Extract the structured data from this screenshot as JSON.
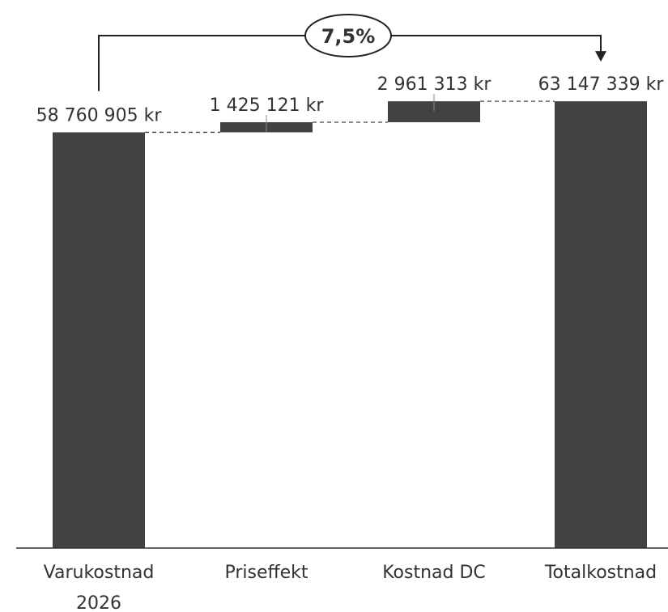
{
  "chart_data": {
    "type": "waterfall",
    "categories": [
      "Varukostnad\n2026",
      "Priseffekt",
      "Kostnad DC",
      "Totalkostnad"
    ],
    "values": [
      58760905,
      1425121,
      2961313,
      63147339
    ],
    "kinds": [
      "total",
      "delta",
      "delta",
      "total"
    ],
    "value_labels": [
      "58 760 905 kr",
      "1 425 121 kr",
      "2 961 313 kr",
      "63 147 339 kr"
    ],
    "ylim": [
      0,
      73000000
    ],
    "change_label": "7,5%",
    "grid": false,
    "colors": {
      "bar": "#424242",
      "text": "#333333"
    }
  }
}
